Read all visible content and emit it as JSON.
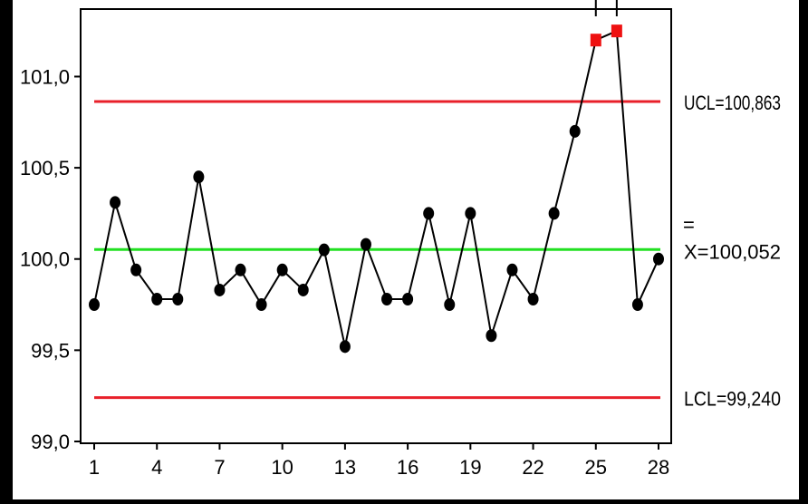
{
  "chart_data": {
    "type": "line",
    "title": "",
    "xlabel": "",
    "ylabel": "",
    "x": [
      1,
      2,
      3,
      4,
      5,
      6,
      7,
      8,
      9,
      10,
      11,
      12,
      13,
      14,
      15,
      16,
      17,
      18,
      19,
      20,
      21,
      22,
      23,
      24,
      25,
      26,
      27,
      28
    ],
    "values": [
      99.75,
      100.31,
      99.94,
      99.78,
      99.78,
      100.45,
      99.83,
      99.94,
      99.75,
      99.94,
      99.83,
      100.05,
      99.52,
      100.08,
      99.78,
      99.78,
      100.25,
      99.75,
      100.25,
      99.58,
      99.94,
      99.78,
      100.25,
      100.7,
      101.2,
      101.25,
      99.75,
      100.0
    ],
    "out_of_control_points": [
      25,
      26
    ],
    "x_ticks": [
      1,
      4,
      7,
      10,
      13,
      16,
      19,
      22,
      25,
      28
    ],
    "y_ticks": [
      {
        "value": 99.0,
        "label": "99,0"
      },
      {
        "value": 99.5,
        "label": "99,5"
      },
      {
        "value": 100.0,
        "label": "100,0"
      },
      {
        "value": 100.5,
        "label": "100,5"
      },
      {
        "value": 101.0,
        "label": "101,0"
      }
    ],
    "xlim": [
      0.5,
      28.5
    ],
    "ylim": [
      98.99,
      101.37
    ],
    "grid": false,
    "control_limits": [
      {
        "name": "UCL",
        "value": 100.863,
        "label": "UCL=100,863",
        "color": "#e8202a"
      },
      {
        "name": "center",
        "value": 100.052,
        "label": "X=100,052",
        "bar": "=",
        "color": "#22e022"
      },
      {
        "name": "LCL",
        "value": 99.24,
        "label": "LCL=99,240",
        "color": "#e8202a"
      }
    ],
    "colors": {
      "series_line": "#000000",
      "point": "#000000",
      "out_of_control_point": "#ee1111",
      "plot_background": "#ffffff",
      "page_background": "#000000"
    }
  }
}
